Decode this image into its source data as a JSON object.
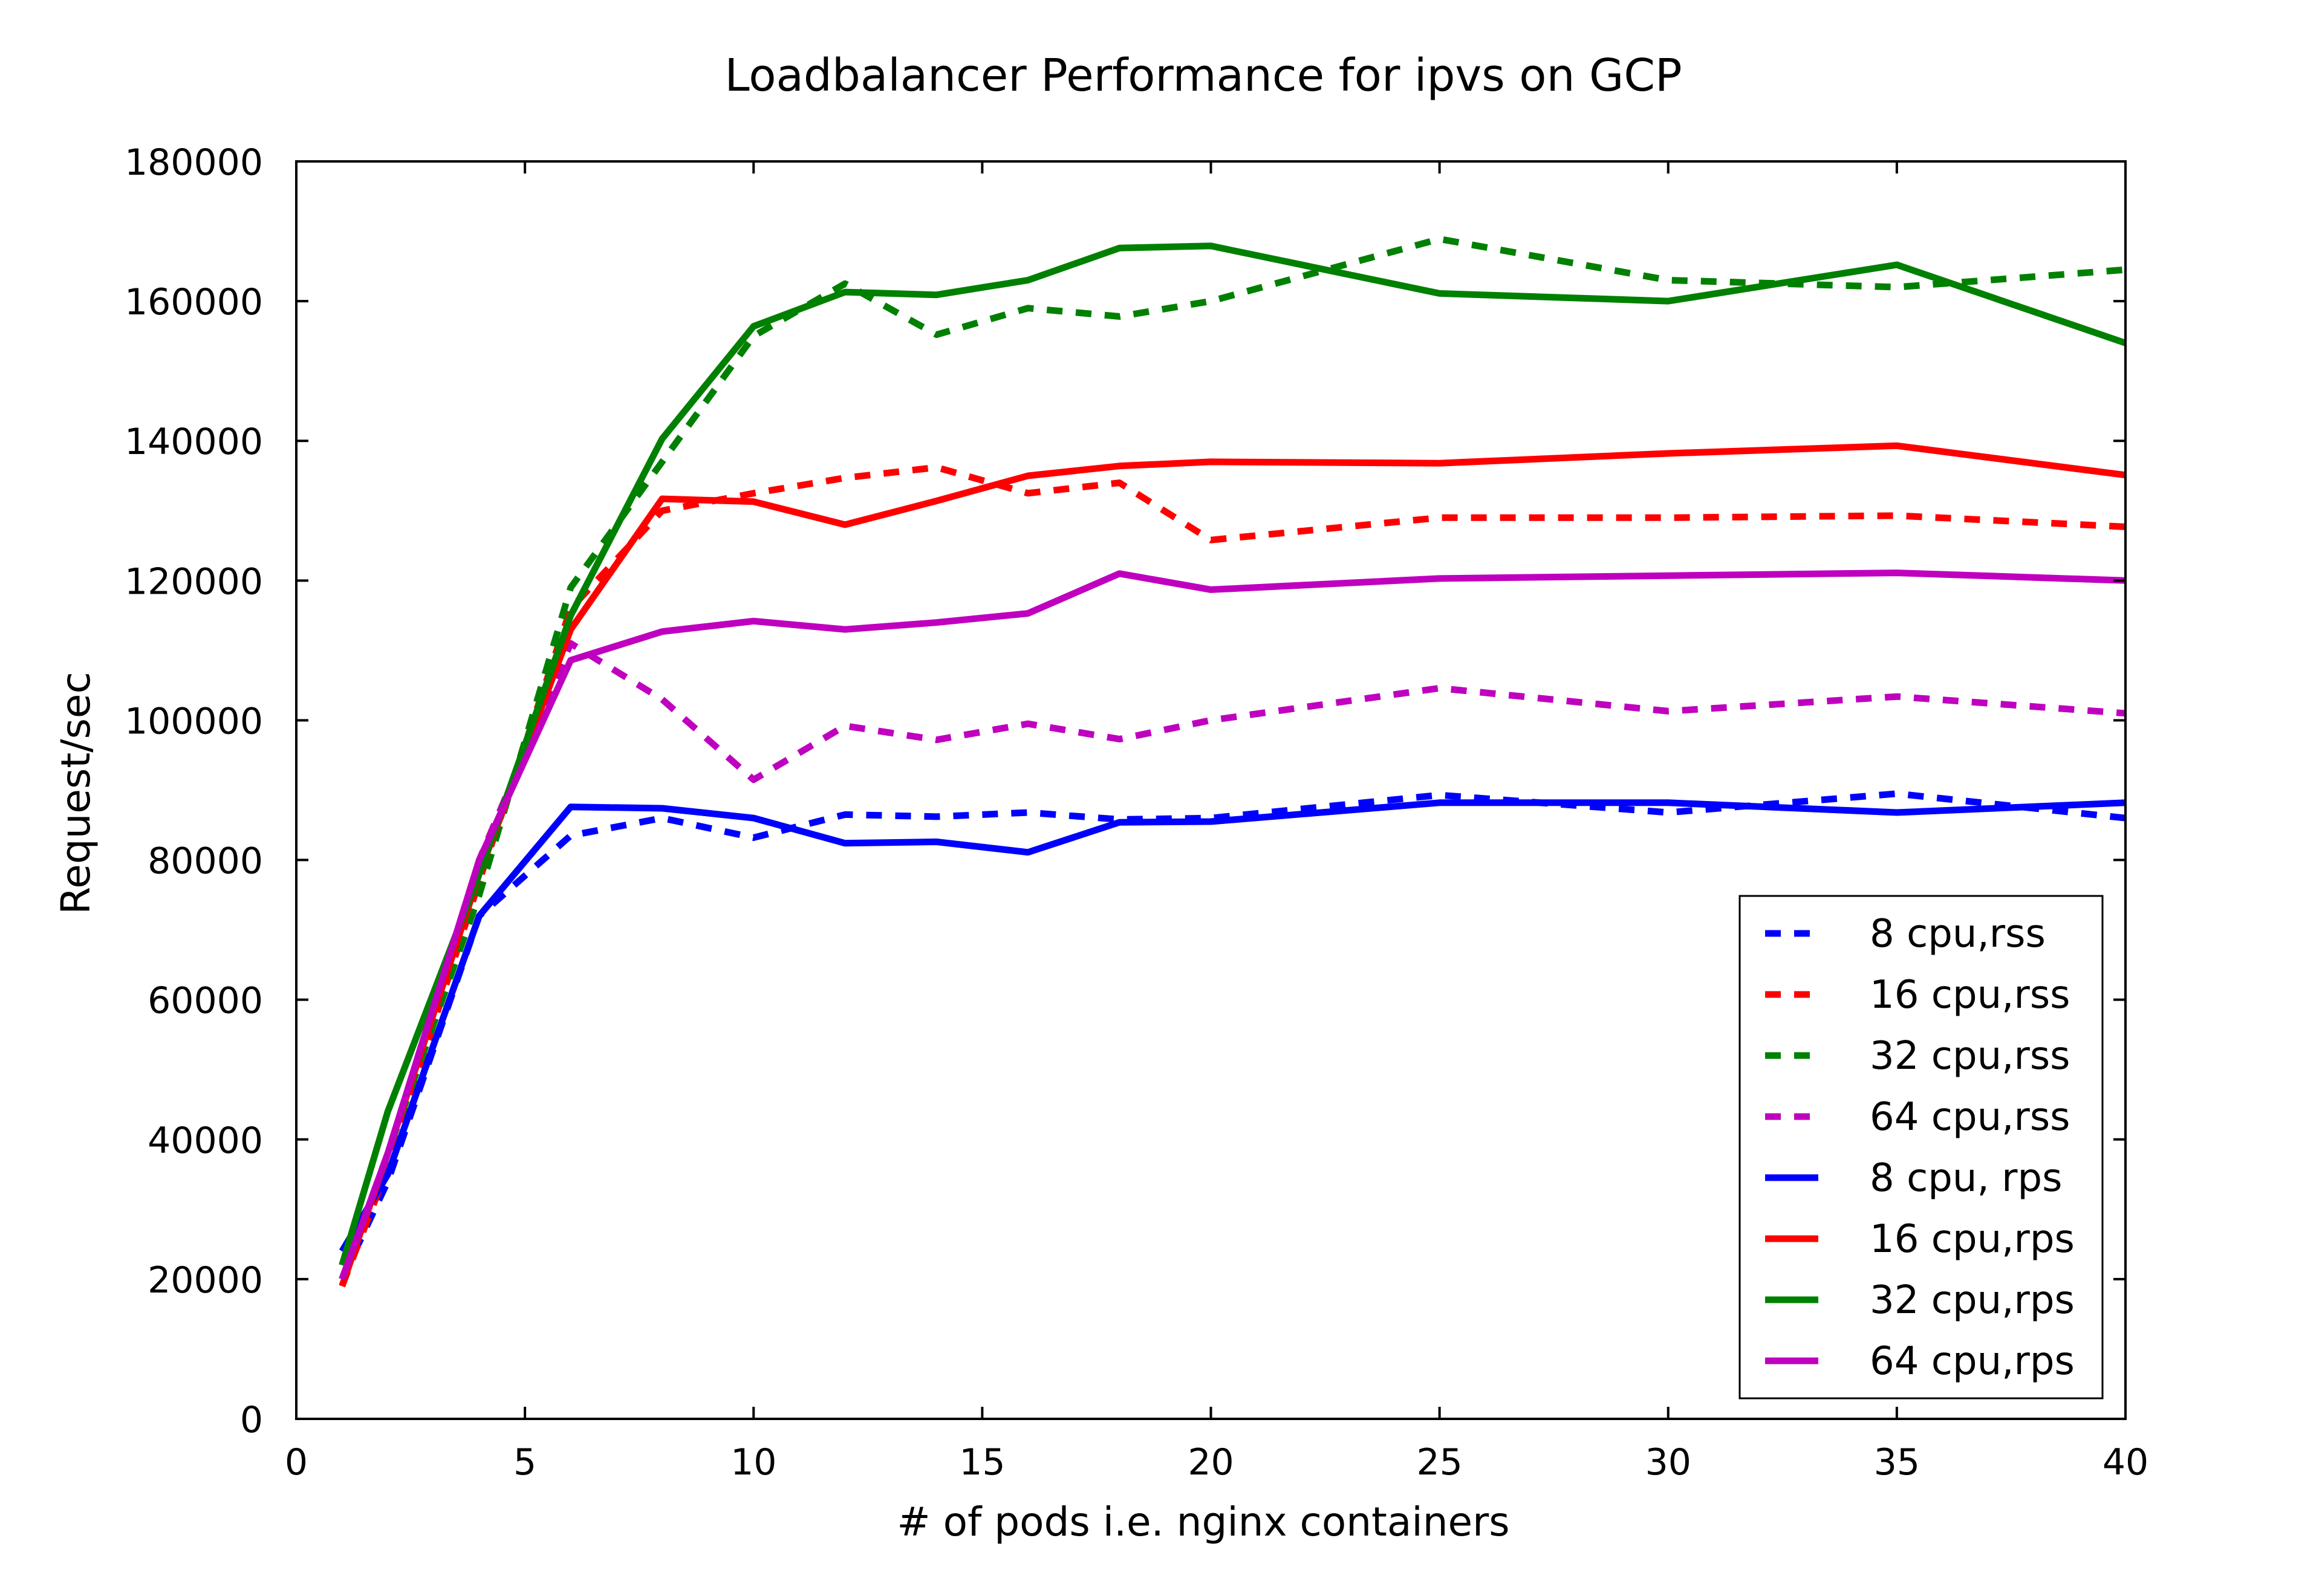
{
  "chart_data": {
    "type": "line",
    "title": "Loadbalancer Performance for ipvs on GCP",
    "xlabel": "# of pods i.e. nginx containers",
    "ylabel": "Request/sec",
    "xlim": [
      0,
      40
    ],
    "ylim": [
      0,
      180000
    ],
    "xticks": [
      0,
      5,
      10,
      15,
      20,
      25,
      30,
      35,
      40
    ],
    "yticks": [
      0,
      20000,
      40000,
      60000,
      80000,
      100000,
      120000,
      140000,
      160000,
      180000
    ],
    "grid": false,
    "legend_position": "bottom-right",
    "series": [
      {
        "name": "8 cpu,rss",
        "color": "#0000ff",
        "style": "dashed",
        "points": [
          [
            1,
            20000
          ],
          [
            2,
            34000
          ],
          [
            4,
            72000
          ],
          [
            6,
            83500
          ],
          [
            8,
            86000
          ],
          [
            10,
            83200
          ],
          [
            12,
            86500
          ],
          [
            14,
            86200
          ],
          [
            16,
            86800
          ],
          [
            18,
            85800
          ],
          [
            20,
            86000
          ],
          [
            25,
            89300
          ],
          [
            30,
            86800
          ],
          [
            35,
            89500
          ],
          [
            40,
            86000
          ]
        ]
      },
      {
        "name": "16 cpu,rss",
        "color": "#ff0000",
        "style": "dashed",
        "points": [
          [
            1,
            19000
          ],
          [
            2,
            36000
          ],
          [
            4,
            77000
          ],
          [
            6,
            116000
          ],
          [
            8,
            130000
          ],
          [
            10,
            132500
          ],
          [
            12,
            134700
          ],
          [
            14,
            136200
          ],
          [
            16,
            132500
          ],
          [
            18,
            134000
          ],
          [
            20,
            125800
          ],
          [
            25,
            129000
          ],
          [
            30,
            129000
          ],
          [
            35,
            129300
          ],
          [
            40,
            127700
          ]
        ]
      },
      {
        "name": "32 cpu,rss",
        "color": "#008000",
        "style": "dashed",
        "points": [
          [
            1,
            20000
          ],
          [
            2,
            38000
          ],
          [
            4,
            75000
          ],
          [
            6,
            119000
          ],
          [
            8,
            137000
          ],
          [
            10,
            155000
          ],
          [
            12,
            162500
          ],
          [
            14,
            155200
          ],
          [
            16,
            159000
          ],
          [
            18,
            157800
          ],
          [
            20,
            160000
          ],
          [
            25,
            168900
          ],
          [
            30,
            163000
          ],
          [
            35,
            162000
          ],
          [
            40,
            164500
          ]
        ]
      },
      {
        "name": "64 cpu,rss",
        "color": "#bf00bf",
        "style": "dashed",
        "points": [
          [
            1,
            20000
          ],
          [
            2,
            38000
          ],
          [
            4,
            80000
          ],
          [
            6,
            111000
          ],
          [
            8,
            103000
          ],
          [
            10,
            91500
          ],
          [
            12,
            99200
          ],
          [
            14,
            97200
          ],
          [
            16,
            99500
          ],
          [
            18,
            97300
          ],
          [
            20,
            100000
          ],
          [
            25,
            104600
          ],
          [
            30,
            101300
          ],
          [
            35,
            103400
          ],
          [
            40,
            101000
          ]
        ]
      },
      {
        "name": "8 cpu, rps",
        "color": "#0000ff",
        "style": "solid",
        "points": [
          [
            1,
            24000
          ],
          [
            2,
            35000
          ],
          [
            4,
            72000
          ],
          [
            6,
            87600
          ],
          [
            8,
            87400
          ],
          [
            10,
            86000
          ],
          [
            12,
            82400
          ],
          [
            14,
            82600
          ],
          [
            16,
            81100
          ],
          [
            18,
            85400
          ],
          [
            20,
            85500
          ],
          [
            25,
            88200
          ],
          [
            30,
            88200
          ],
          [
            35,
            86800
          ],
          [
            40,
            88200
          ]
        ]
      },
      {
        "name": "16 cpu,rps",
        "color": "#ff0000",
        "style": "solid",
        "points": [
          [
            1,
            19000
          ],
          [
            2,
            38000
          ],
          [
            4,
            78000
          ],
          [
            6,
            113000
          ],
          [
            8,
            131700
          ],
          [
            10,
            131300
          ],
          [
            12,
            128000
          ],
          [
            14,
            131400
          ],
          [
            16,
            135000
          ],
          [
            18,
            136400
          ],
          [
            20,
            137000
          ],
          [
            25,
            136800
          ],
          [
            30,
            138200
          ],
          [
            35,
            139300
          ],
          [
            40,
            135100
          ]
        ]
      },
      {
        "name": "32 cpu,rps",
        "color": "#008000",
        "style": "solid",
        "points": [
          [
            1,
            22000
          ],
          [
            2,
            44000
          ],
          [
            4,
            78000
          ],
          [
            6,
            115000
          ],
          [
            8,
            140300
          ],
          [
            10,
            156400
          ],
          [
            12,
            161300
          ],
          [
            14,
            160900
          ],
          [
            16,
            163000
          ],
          [
            18,
            167600
          ],
          [
            20,
            167900
          ],
          [
            25,
            161100
          ],
          [
            30,
            160000
          ],
          [
            35,
            165200
          ],
          [
            40,
            154000
          ]
        ]
      },
      {
        "name": "64 cpu,rps",
        "color": "#bf00bf",
        "style": "solid",
        "points": [
          [
            1,
            20000
          ],
          [
            2,
            38000
          ],
          [
            4,
            80000
          ],
          [
            6,
            108600
          ],
          [
            8,
            112700
          ],
          [
            10,
            114200
          ],
          [
            12,
            113000
          ],
          [
            14,
            114000
          ],
          [
            16,
            115300
          ],
          [
            18,
            121000
          ],
          [
            20,
            118700
          ],
          [
            25,
            120300
          ],
          [
            30,
            120700
          ],
          [
            35,
            121100
          ],
          [
            40,
            120000
          ]
        ]
      }
    ]
  }
}
